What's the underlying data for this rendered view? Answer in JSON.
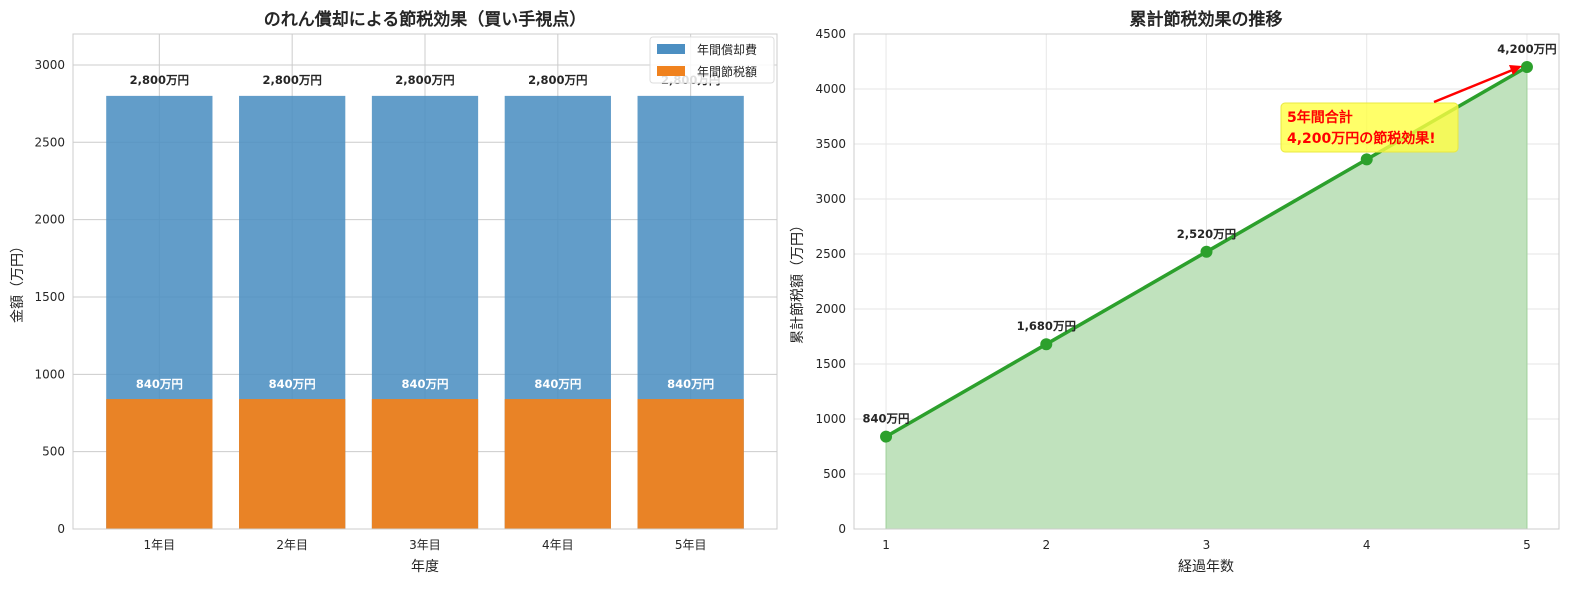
{
  "chart_data": [
    {
      "type": "bar",
      "title": "のれん償却による節税効果（買い手視点）",
      "xlabel": "年度",
      "ylabel": "金額（万円）",
      "categories": [
        "1年目",
        "2年目",
        "3年目",
        "4年目",
        "5年目"
      ],
      "ylim": [
        0,
        3200
      ],
      "yticks": [
        "0",
        "500",
        "1000",
        "1500",
        "2000",
        "2500",
        "3000"
      ],
      "grid": true,
      "legend_position": "top-right",
      "series": [
        {
          "name": "年間償却費",
          "values": [
            2800,
            2800,
            2800,
            2800,
            2800
          ],
          "color": "#4c8fc2",
          "labels": [
            "2,800万円",
            "2,800万円",
            "2,800万円",
            "2,800万円",
            "2,800万円"
          ]
        },
        {
          "name": "年間節税額",
          "values": [
            840,
            840,
            840,
            840,
            840
          ],
          "color": "#f0821e",
          "labels": [
            "840万円",
            "840万円",
            "840万円",
            "840万円",
            "840万円"
          ]
        }
      ]
    },
    {
      "type": "area",
      "title": "累計節税効果の推移",
      "xlabel": "経過年数",
      "ylabel": "累計節税額（万円）",
      "x": [
        1,
        2,
        3,
        4,
        5
      ],
      "xticks": [
        "1",
        "2",
        "3",
        "4",
        "5"
      ],
      "xlim": [
        0.8,
        5.2
      ],
      "ylim": [
        0,
        4500
      ],
      "yticks": [
        "0",
        "500",
        "1000",
        "1500",
        "2000",
        "2500",
        "3000",
        "3500",
        "4000",
        "4500"
      ],
      "grid": true,
      "series": [
        {
          "values": [
            840,
            1680,
            2520,
            3360,
            4200
          ],
          "color": "#2ca02c",
          "fill": "#c0e2bd"
        }
      ],
      "point_labels": [
        "840万円",
        "1,680万円",
        "2,520万円",
        "",
        "4,200万円"
      ],
      "annotation": {
        "lines": [
          "5年間合計",
          "4,200万円の節税効果!"
        ],
        "text_color": "#ff0000",
        "box_color": "#ffff44",
        "arrow_color": "#ff0000",
        "points_to_x": 5
      }
    }
  ]
}
